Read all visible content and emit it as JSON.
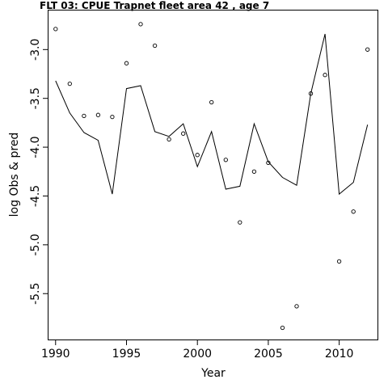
{
  "chart_data": {
    "type": "line",
    "title": "FLT 03:    CPUE       Trapnet   fleet         area         42           , age 7",
    "xlabel": "Year",
    "ylabel": "log Obs & pred",
    "xlim": [
      1989.5,
      2012.7
    ],
    "ylim": [
      -5.97,
      -2.6
    ],
    "xticks": [
      1990,
      1995,
      2000,
      2005,
      2010
    ],
    "yticks": [
      -3.0,
      -3.5,
      -4.0,
      -4.5,
      -5.0,
      -5.5
    ],
    "xtick_labels": [
      "1990",
      "1995",
      "2000",
      "2005",
      "2010"
    ],
    "ytick_labels": [
      "-3.0",
      "-3.5",
      "-4.0",
      "-4.5",
      "-5.0",
      "-5.5"
    ],
    "grid": false,
    "series": [
      {
        "style": "points",
        "x": [
          1990,
          1991,
          1992,
          1993,
          1994,
          1995,
          1996,
          1997,
          1998,
          1999,
          2000,
          2001,
          2002,
          2003,
          2004,
          2005,
          2006,
          2007,
          2008,
          2009,
          2010,
          2011,
          2012
        ],
        "values": [
          -2.79,
          -3.35,
          -3.68,
          -3.67,
          -3.69,
          -3.14,
          -2.74,
          -2.96,
          -3.92,
          -3.86,
          -4.08,
          -3.54,
          -4.13,
          -4.77,
          -4.25,
          -4.16,
          -5.85,
          -5.63,
          -3.45,
          -3.26,
          -5.17,
          -4.66,
          -3.0
        ]
      },
      {
        "style": "line",
        "x": [
          1990,
          1991,
          1992,
          1993,
          1994,
          1995,
          1996,
          1997,
          1998,
          1999,
          2000,
          2001,
          2002,
          2003,
          2004,
          2005,
          2006,
          2007,
          2008,
          2009,
          2010,
          2011,
          2012
        ],
        "values": [
          -3.32,
          -3.65,
          -3.85,
          -3.93,
          -4.48,
          -3.4,
          -3.37,
          -3.84,
          -3.89,
          -3.76,
          -4.2,
          -3.84,
          -4.43,
          -4.4,
          -3.76,
          -4.15,
          -4.31,
          -4.39,
          -3.45,
          -2.84,
          -4.48,
          -4.36,
          -3.77
        ]
      }
    ]
  }
}
